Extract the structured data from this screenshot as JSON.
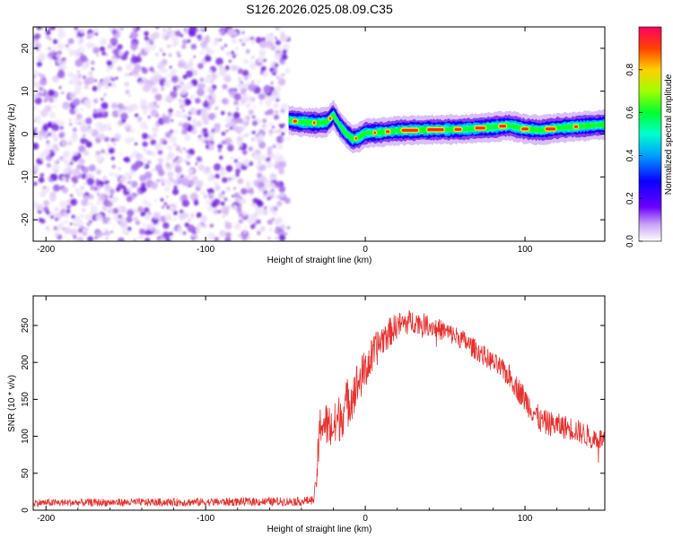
{
  "title": "S126.2026.025.08.09.C35",
  "chart_data": [
    {
      "type": "heatmap",
      "title": "S126.2026.025.08.09.C35",
      "xlabel": "Height of straight line (km)",
      "ylabel": "Frequency (Hz)",
      "xlim": [
        -208,
        150
      ],
      "ylim": [
        -25,
        25
      ],
      "xticks": [
        -200,
        -100,
        0,
        100
      ],
      "yticks": [
        -20,
        -10,
        0,
        10,
        20
      ],
      "noise_region_x": [
        -208,
        -48
      ],
      "ridge_center_hz": [
        [
          -48,
          3.2
        ],
        [
          -40,
          2.8
        ],
        [
          -30,
          2.6
        ],
        [
          -24,
          2.8
        ],
        [
          -20,
          4.5
        ],
        [
          -16,
          2.0
        ],
        [
          -12,
          0.2
        ],
        [
          -8,
          -1.2
        ],
        [
          -4,
          -0.8
        ],
        [
          0,
          0.2
        ],
        [
          10,
          0.4
        ],
        [
          20,
          0.8
        ],
        [
          40,
          1.0
        ],
        [
          60,
          1.1
        ],
        [
          80,
          1.6
        ],
        [
          90,
          2.0
        ],
        [
          100,
          1.2
        ],
        [
          110,
          0.9
        ],
        [
          120,
          1.4
        ],
        [
          150,
          2.2
        ]
      ],
      "colorbar": {
        "label": "Normalized spectral amplitude",
        "range": [
          0.0,
          1.0
        ],
        "ticks": [
          "0.0",
          "0.2",
          "0.4",
          "0.6",
          "0.8"
        ]
      }
    },
    {
      "type": "line",
      "xlabel": "Height of straight line (km)",
      "ylabel": "SNR (10 * v/v)",
      "xlim": [
        -208,
        150
      ],
      "ylim": [
        0,
        290
      ],
      "xticks": [
        -200,
        -100,
        0,
        100
      ],
      "yticks": [
        0,
        50,
        100,
        150,
        200,
        250
      ],
      "color": "#e8312e",
      "envelope": [
        [
          -208,
          10
        ],
        [
          -100,
          11
        ],
        [
          -40,
          12
        ],
        [
          -32,
          14
        ],
        [
          -30,
          60
        ],
        [
          -28,
          120
        ],
        [
          -20,
          110
        ],
        [
          -10,
          150
        ],
        [
          0,
          190
        ],
        [
          10,
          230
        ],
        [
          20,
          250
        ],
        [
          30,
          256
        ],
        [
          40,
          250
        ],
        [
          50,
          242
        ],
        [
          60,
          232
        ],
        [
          70,
          216
        ],
        [
          80,
          200
        ],
        [
          90,
          182
        ],
        [
          100,
          150
        ],
        [
          110,
          120
        ],
        [
          120,
          115
        ],
        [
          130,
          110
        ],
        [
          140,
          100
        ],
        [
          150,
          95
        ]
      ],
      "noise": [
        [
          -208,
          5
        ],
        [
          -32,
          6
        ],
        [
          -30,
          30
        ],
        [
          -10,
          35
        ],
        [
          0,
          28
        ],
        [
          20,
          18
        ],
        [
          40,
          14
        ],
        [
          80,
          14
        ],
        [
          100,
          18
        ],
        [
          150,
          15
        ]
      ]
    }
  ]
}
